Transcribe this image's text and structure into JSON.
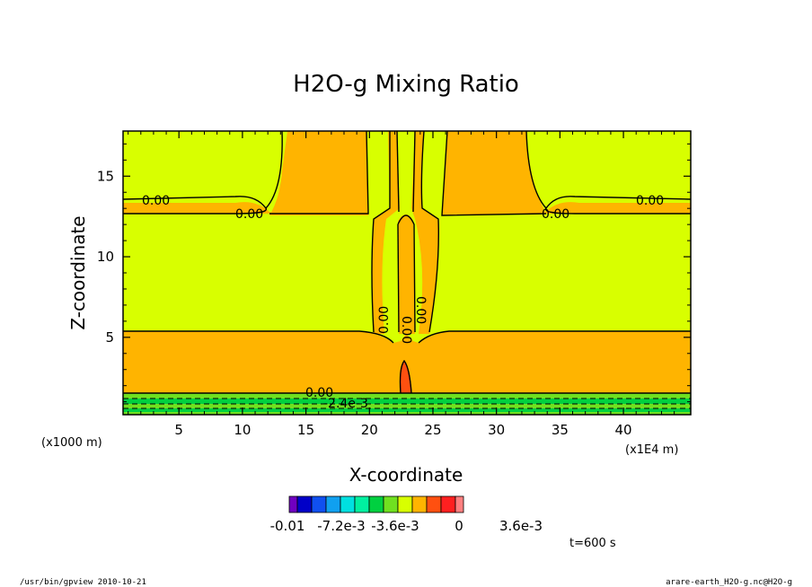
{
  "chart_data": {
    "type": "heatmap",
    "title": "H2O-g Mixing Ratio",
    "xlabel": "X-coordinate",
    "ylabel": "Z-coordinate",
    "x_unit_note": "(x1E4 m)",
    "z_unit_note": "(x1000 m)",
    "xlim": [
      0.6,
      45.3
    ],
    "ylim": [
      0.2,
      17.8
    ],
    "x_ticks": [
      5,
      10,
      15,
      20,
      25,
      30,
      35,
      40
    ],
    "y_ticks": [
      5,
      10,
      15
    ],
    "contour_labels": [
      "0.00",
      "0.00",
      "0.00",
      "0.00",
      "0.00",
      "0.00",
      "0.00",
      "0.00",
      "-2.4e-3"
    ],
    "colorbar": {
      "colors": [
        "#7000c0",
        "#0000c8",
        "#1050f0",
        "#10a0f0",
        "#00e0e0",
        "#00f0a0",
        "#00d040",
        "#70e020",
        "#d8ff00",
        "#ffb400",
        "#ff5010",
        "#ff2020",
        "#ff8080"
      ],
      "tick_labels": [
        "-0.01",
        "-7.2e-3",
        "-3.6e-3",
        "0",
        "3.6e-3"
      ]
    },
    "time_label": "t=600 s"
  },
  "footer": {
    "left": "/usr/bin/gpview   2010-10-21",
    "right": "arare-earth_H2O-g.nc@H2O-g"
  }
}
